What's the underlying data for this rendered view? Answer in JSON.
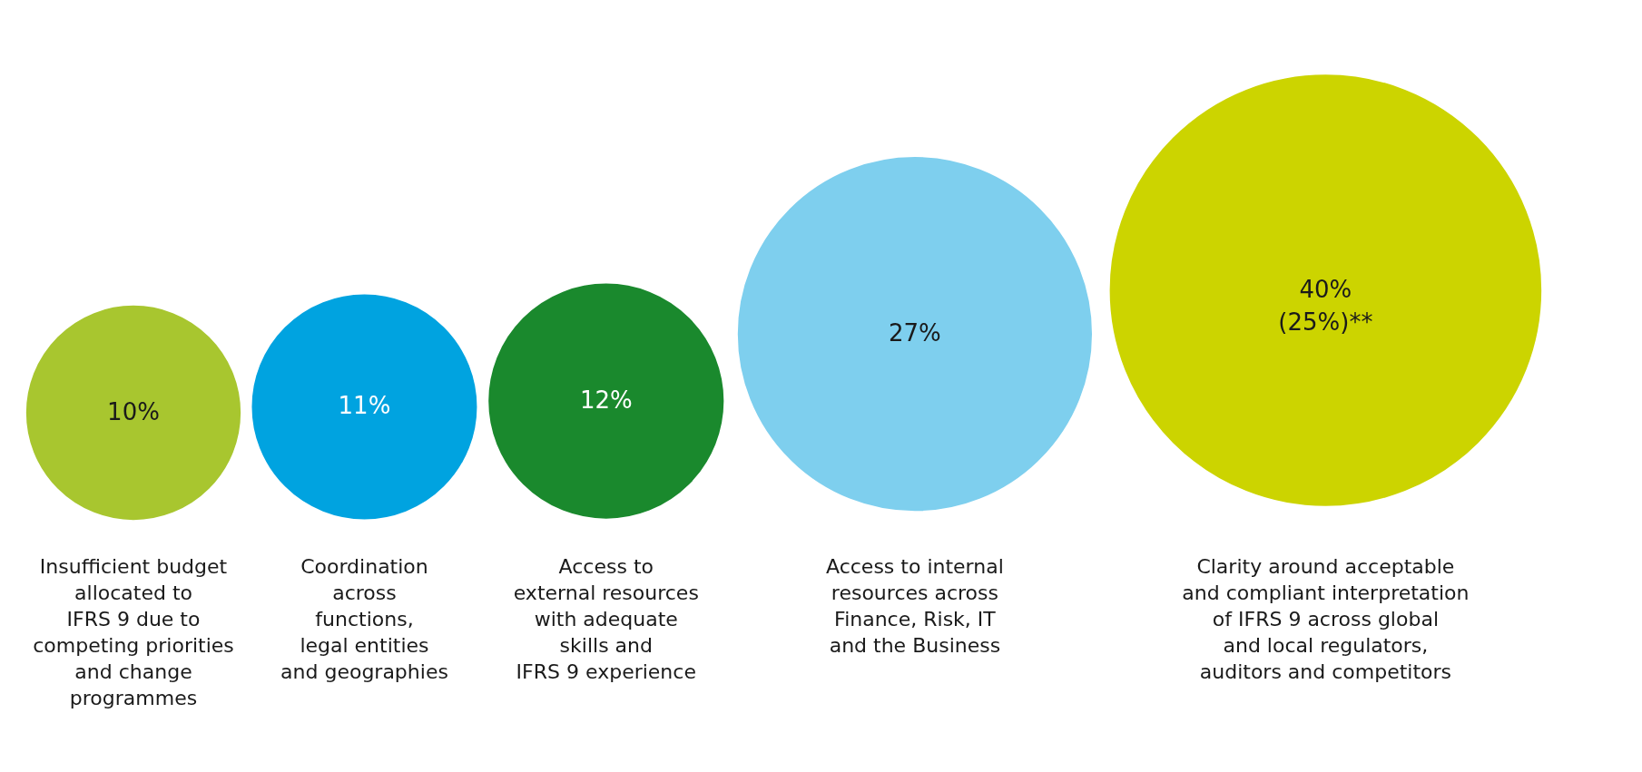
{
  "chart_data": {
    "type": "other",
    "categories": [
      "Insufficient budget\nallocated to\nIFRS 9 due to\ncompeting priorities\nand change\nprogrammes",
      "Coordination\nacross\nfunctions,\nlegal entities\nand geographies",
      "Access to\nexternal resources\nwith adequate\nskills and\nIFRS 9 experience",
      "Access to internal\nresources across\nFinance, Risk, IT\nand the Business",
      "Clarity around acceptable\nand compliant interpretation\nof IFRS 9 across global\nand local regulators,\nauditors and competitors"
    ],
    "values": [
      10,
      11,
      12,
      27,
      40
    ],
    "value_labels": [
      "10%",
      "11%",
      "12%",
      "27%",
      "40%\n(25%)**"
    ],
    "colors": [
      "#a8c62f",
      "#00a3e0",
      "#1a892d",
      "#7ecfee",
      "#ccd400"
    ]
  }
}
